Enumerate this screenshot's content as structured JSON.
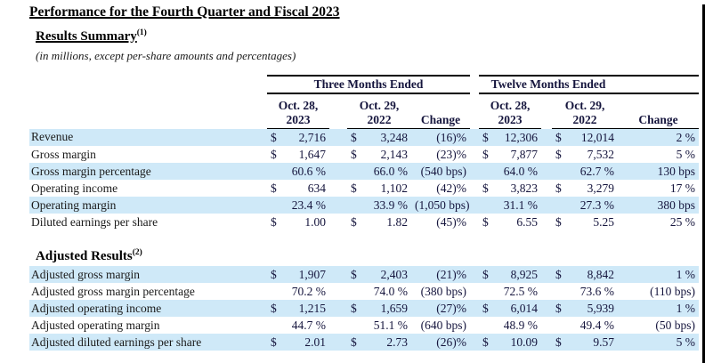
{
  "colors": {
    "row_shade": "#cfe9f8",
    "rule": "#000000",
    "text": "#1a1a1a"
  },
  "page": {
    "title": "Performance for the Fourth Quarter and Fiscal 2023",
    "units_note": "(in millions, except per-share amounts and percentages)"
  },
  "table": {
    "groups": [
      {
        "label": "Three Months Ended"
      },
      {
        "label": "Twelve Months Ended"
      }
    ],
    "columns": [
      {
        "l1": "Oct. 28,",
        "l2": "2023"
      },
      {
        "l1": "Oct. 29,",
        "l2": "2022"
      },
      {
        "l1": "",
        "l2": "Change"
      },
      {
        "l1": "Oct. 28,",
        "l2": "2023"
      },
      {
        "l1": "Oct. 29,",
        "l2": "2022"
      },
      {
        "l1": "",
        "l2": "Change"
      }
    ],
    "sections": [
      {
        "heading": "Results Summary",
        "sup": "(1)",
        "rows": [
          {
            "label": "Revenue",
            "shaded": true,
            "cells": [
              {
                "d": "$",
                "v": "2,716"
              },
              {
                "d": "$",
                "v": "3,248"
              },
              {
                "v": "(16)%"
              },
              {
                "d": "$",
                "v": "12,306"
              },
              {
                "d": "$",
                "v": "12,014"
              },
              {
                "v": "2 %"
              }
            ]
          },
          {
            "label": "Gross margin",
            "shaded": false,
            "cells": [
              {
                "d": "$",
                "v": "1,647"
              },
              {
                "d": "$",
                "v": "2,143"
              },
              {
                "v": "(23)%"
              },
              {
                "d": "$",
                "v": "7,877"
              },
              {
                "d": "$",
                "v": "7,532"
              },
              {
                "v": "5 %"
              }
            ]
          },
          {
            "label": "Gross margin percentage",
            "shaded": true,
            "cells": [
              {
                "v": "60.6 %"
              },
              {
                "v": "66.0 %"
              },
              {
                "v": "(540 bps)"
              },
              {
                "v": "64.0 %"
              },
              {
                "v": "62.7 %"
              },
              {
                "v": "130 bps"
              }
            ]
          },
          {
            "label": "Operating income",
            "shaded": false,
            "cells": [
              {
                "d": "$",
                "v": "634"
              },
              {
                "d": "$",
                "v": "1,102"
              },
              {
                "v": "(42)%"
              },
              {
                "d": "$",
                "v": "3,823"
              },
              {
                "d": "$",
                "v": "3,279"
              },
              {
                "v": "17 %"
              }
            ]
          },
          {
            "label": "Operating margin",
            "shaded": true,
            "cells": [
              {
                "v": "23.4 %"
              },
              {
                "v": "33.9 %"
              },
              {
                "v": "(1,050 bps)"
              },
              {
                "v": "31.1 %"
              },
              {
                "v": "27.3 %"
              },
              {
                "v": "380 bps"
              }
            ]
          },
          {
            "label": "Diluted earnings per share",
            "shaded": false,
            "cells": [
              {
                "d": "$",
                "v": "1.00"
              },
              {
                "d": "$",
                "v": "1.82"
              },
              {
                "v": "(45)%"
              },
              {
                "d": "$",
                "v": "6.55"
              },
              {
                "d": "$",
                "v": "5.25"
              },
              {
                "v": "25 %"
              }
            ]
          }
        ]
      },
      {
        "heading": "Adjusted Results",
        "sup": "(2)",
        "rows": [
          {
            "label": "Adjusted gross margin",
            "shaded": true,
            "cells": [
              {
                "d": "$",
                "v": "1,907"
              },
              {
                "d": "$",
                "v": "2,403"
              },
              {
                "v": "(21)%"
              },
              {
                "d": "$",
                "v": "8,925"
              },
              {
                "d": "$",
                "v": "8,842"
              },
              {
                "v": "1 %"
              }
            ]
          },
          {
            "label": "Adjusted gross margin percentage",
            "shaded": false,
            "cells": [
              {
                "v": "70.2 %"
              },
              {
                "v": "74.0 %"
              },
              {
                "v": "(380 bps)"
              },
              {
                "v": "72.5 %"
              },
              {
                "v": "73.6 %"
              },
              {
                "v": "(110 bps)"
              }
            ]
          },
          {
            "label": "Adjusted operating income",
            "shaded": true,
            "cells": [
              {
                "d": "$",
                "v": "1,215"
              },
              {
                "d": "$",
                "v": "1,659"
              },
              {
                "v": "(27)%"
              },
              {
                "d": "$",
                "v": "6,014"
              },
              {
                "d": "$",
                "v": "5,939"
              },
              {
                "v": "1 %"
              }
            ]
          },
          {
            "label": "Adjusted operating margin",
            "shaded": false,
            "cells": [
              {
                "v": "44.7 %"
              },
              {
                "v": "51.1 %"
              },
              {
                "v": "(640 bps)"
              },
              {
                "v": "48.9 %"
              },
              {
                "v": "49.4 %"
              },
              {
                "v": "(50 bps)"
              }
            ]
          },
          {
            "label": "Adjusted diluted earnings per share",
            "shaded": true,
            "cells": [
              {
                "d": "$",
                "v": "2.01"
              },
              {
                "d": "$",
                "v": "2.73"
              },
              {
                "v": "(26)%"
              },
              {
                "d": "$",
                "v": "10.09"
              },
              {
                "d": "$",
                "v": "9.57"
              },
              {
                "v": "5 %"
              }
            ]
          }
        ]
      }
    ]
  }
}
